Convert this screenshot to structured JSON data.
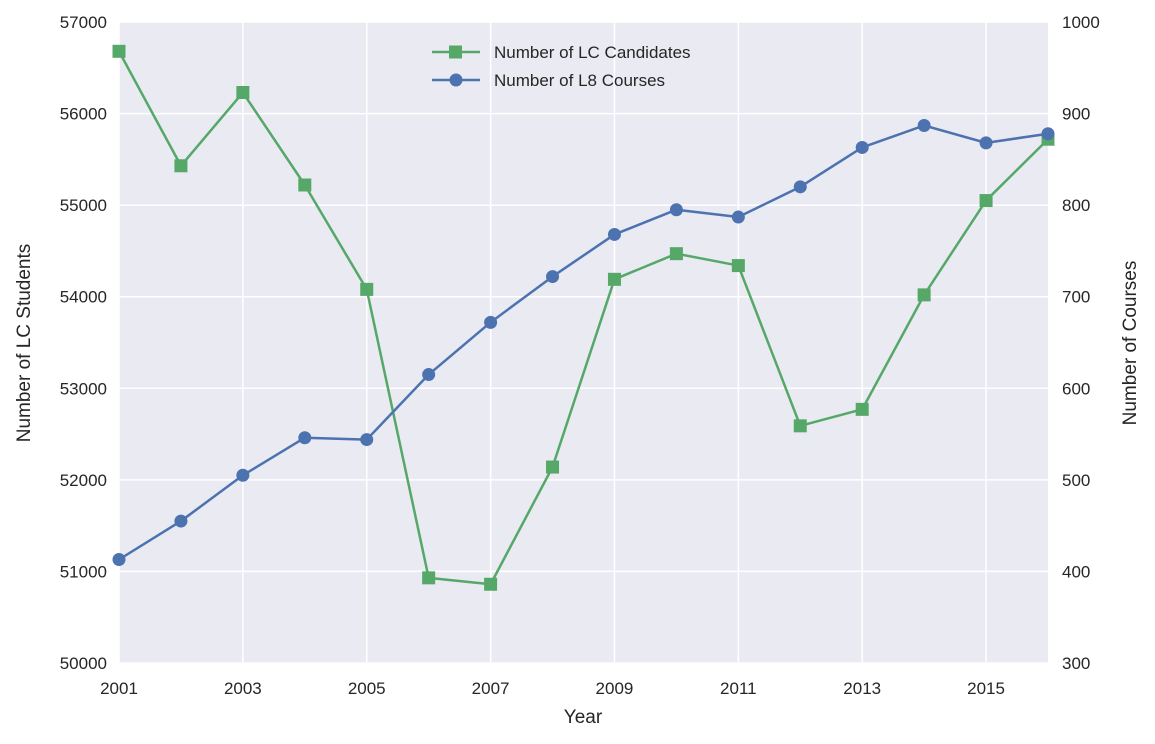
{
  "chart_data": {
    "type": "line",
    "x": [
      2001,
      2002,
      2003,
      2004,
      2005,
      2006,
      2007,
      2008,
      2009,
      2010,
      2011,
      2012,
      2013,
      2014,
      2015,
      2016
    ],
    "xlabel": "Year",
    "xlim": [
      2001,
      2016
    ],
    "xticks": [
      "2001",
      "2003",
      "2005",
      "2007",
      "2009",
      "2011",
      "2013",
      "2015"
    ],
    "ylabel_left": "Number of LC Students",
    "ylim_left": [
      50000,
      57000
    ],
    "yticks_left": [
      "50000",
      "51000",
      "52000",
      "53000",
      "54000",
      "55000",
      "56000",
      "57000"
    ],
    "ylabel_right": "Number of Courses",
    "ylim_right": [
      300,
      1000
    ],
    "yticks_right": [
      "300",
      "400",
      "500",
      "600",
      "700",
      "800",
      "900",
      "1000"
    ],
    "grid": true,
    "legend_position": "top-center",
    "series": [
      {
        "name": "Number of LC Candidates",
        "axis": "left",
        "marker": "square",
        "color": "#55a868",
        "values": [
          56680,
          55430,
          56230,
          55220,
          54080,
          50930,
          50860,
          52140,
          54190,
          54470,
          54340,
          52590,
          52770,
          54020,
          55050,
          55720
        ]
      },
      {
        "name": "Number of L8 Courses",
        "axis": "right",
        "marker": "circle",
        "color": "#4c72b0",
        "values": [
          413,
          455,
          505,
          546,
          544,
          615,
          672,
          722,
          768,
          795,
          787,
          820,
          863,
          887,
          868,
          878
        ]
      }
    ]
  },
  "colors": {
    "plot_background": "#eaeaf2",
    "grid": "#ffffff",
    "text": "#262626"
  }
}
